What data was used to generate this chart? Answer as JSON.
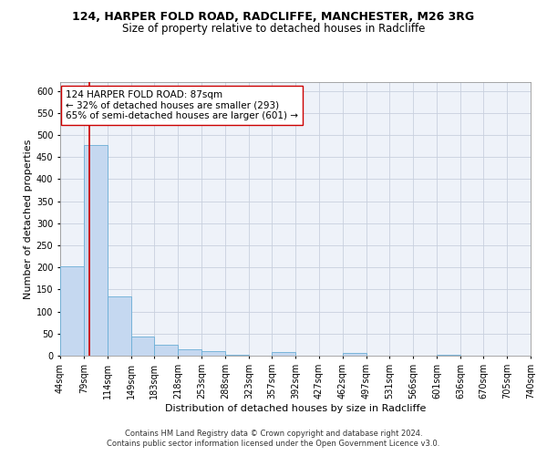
{
  "title_line1": "124, HARPER FOLD ROAD, RADCLIFFE, MANCHESTER, M26 3RG",
  "title_line2": "Size of property relative to detached houses in Radcliffe",
  "xlabel": "Distribution of detached houses by size in Radcliffe",
  "ylabel": "Number of detached properties",
  "bar_edges": [
    44,
    79,
    114,
    149,
    183,
    218,
    253,
    288,
    323,
    357,
    392,
    427,
    462,
    497,
    531,
    566,
    601,
    636,
    670,
    705,
    740
  ],
  "bar_heights": [
    203,
    477,
    135,
    43,
    25,
    15,
    11,
    2,
    0,
    9,
    0,
    0,
    7,
    0,
    0,
    0,
    2,
    0,
    0,
    1
  ],
  "bar_color": "#c5d8f0",
  "bar_edge_color": "#6aaed6",
  "property_size": 87,
  "vline_color": "#cc0000",
  "annotation_line1": "124 HARPER FOLD ROAD: 87sqm",
  "annotation_line2": "← 32% of detached houses are smaller (293)",
  "annotation_line3": "65% of semi-detached houses are larger (601) →",
  "annotation_box_edge": "#cc0000",
  "ylim": [
    0,
    620
  ],
  "yticks": [
    0,
    50,
    100,
    150,
    200,
    250,
    300,
    350,
    400,
    450,
    500,
    550,
    600
  ],
  "footnote1": "Contains HM Land Registry data © Crown copyright and database right 2024.",
  "footnote2": "Contains public sector information licensed under the Open Government Licence v3.0.",
  "bg_color": "#eef2f9",
  "grid_color": "#c8d0de",
  "title_fontsize": 9,
  "subtitle_fontsize": 8.5,
  "axis_label_fontsize": 8,
  "tick_fontsize": 7,
  "annotation_fontsize": 7.5,
  "footnote_fontsize": 6
}
